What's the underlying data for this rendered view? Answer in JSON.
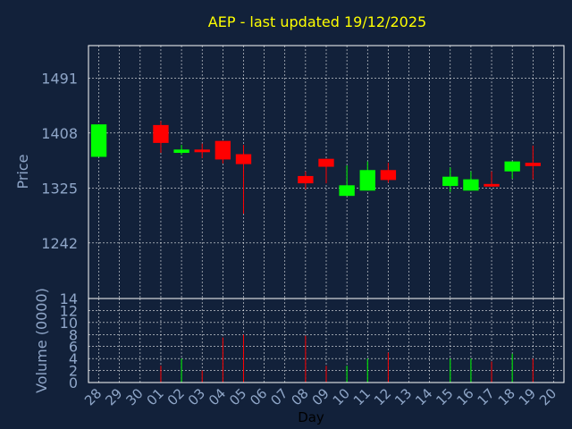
{
  "chart_data": {
    "type": "candlestick",
    "title": "AEP - last updated 19/12/2025",
    "xlabel": "Day",
    "ylabel": "Price",
    "volume_ylabel": "Volume (0000)",
    "grid": true,
    "x_tick_labels": [
      "28",
      "29",
      "30",
      "01",
      "02",
      "03",
      "04",
      "05",
      "06",
      "07",
      "08",
      "09",
      "10",
      "11",
      "12",
      "13",
      "14",
      "15",
      "16",
      "17",
      "18",
      "19",
      "20"
    ],
    "price_ylim": [
      1158,
      1540
    ],
    "price_ticks": [
      1242,
      1325,
      1408,
      1491
    ],
    "volume_ylim": [
      0,
      14
    ],
    "volume_ticks": [
      0,
      2,
      4,
      6,
      8,
      10,
      12,
      14
    ],
    "candles": [
      {
        "day": "28",
        "open": 1372,
        "close": 1421,
        "high": 1421,
        "low": 1372,
        "volume": 0
      },
      {
        "day": "01",
        "open": 1420,
        "close": 1393,
        "high": 1426,
        "low": 1378,
        "volume": 2.8
      },
      {
        "day": "02",
        "open": 1378,
        "close": 1383,
        "high": 1390,
        "low": 1375,
        "volume": 4.0
      },
      {
        "day": "03",
        "open": 1383,
        "close": 1379,
        "high": 1392,
        "low": 1370,
        "volume": 2.0
      },
      {
        "day": "04",
        "open": 1396,
        "close": 1368,
        "high": 1396,
        "low": 1362,
        "volume": 7.5
      },
      {
        "day": "05",
        "open": 1376,
        "close": 1361,
        "high": 1390,
        "low": 1286,
        "volume": 8.0
      },
      {
        "day": "08",
        "open": 1343,
        "close": 1332,
        "high": 1350,
        "low": 1323,
        "volume": 7.8
      },
      {
        "day": "09",
        "open": 1369,
        "close": 1357,
        "high": 1369,
        "low": 1332,
        "volume": 2.8
      },
      {
        "day": "10",
        "open": 1313,
        "close": 1329,
        "high": 1359,
        "low": 1313,
        "volume": 2.8
      },
      {
        "day": "11",
        "open": 1321,
        "close": 1352,
        "high": 1365,
        "low": 1321,
        "volume": 4.0
      },
      {
        "day": "12",
        "open": 1352,
        "close": 1337,
        "high": 1363,
        "low": 1333,
        "volume": 5.0
      },
      {
        "day": "15",
        "open": 1328,
        "close": 1342,
        "high": 1356,
        "low": 1319,
        "volume": 4.0
      },
      {
        "day": "16",
        "open": 1321,
        "close": 1338,
        "high": 1350,
        "low": 1321,
        "volume": 4.0
      },
      {
        "day": "17",
        "open": 1331,
        "close": 1327,
        "high": 1350,
        "low": 1327,
        "volume": 3.5
      },
      {
        "day": "18",
        "open": 1350,
        "close": 1365,
        "high": 1365,
        "low": 1339,
        "volume": 4.8
      },
      {
        "day": "19",
        "open": 1363,
        "close": 1358,
        "high": 1389,
        "low": 1338,
        "volume": 4.0
      }
    ],
    "colors": {
      "background": "#12213a",
      "up": "#00ff00",
      "down": "#ff0000",
      "axis": "#ffffff",
      "grid": "#ffffff",
      "text": "#8fa6c8",
      "title": "#ffff00",
      "xlabel": "#000000"
    }
  }
}
